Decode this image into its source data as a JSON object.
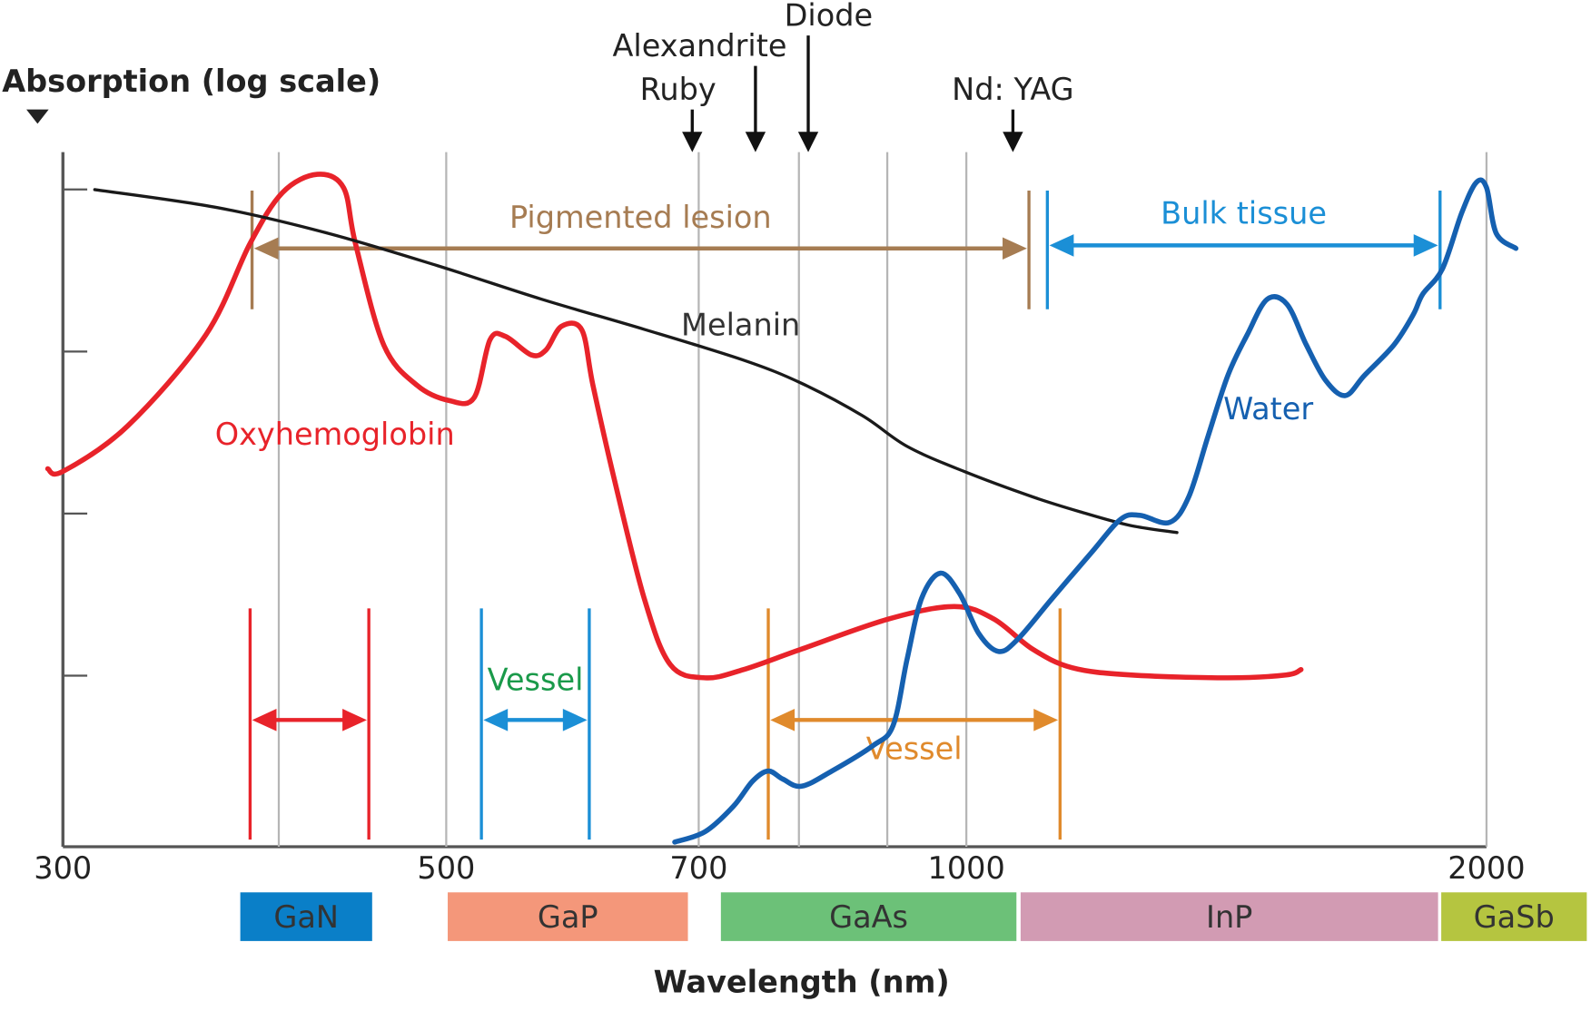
{
  "chart_data": {
    "type": "line",
    "y_label": "Absorption (log scale)",
    "x_label": "Wavelength (nm)",
    "xlim": [
      300,
      2000
    ],
    "xticks": [
      300,
      500,
      700,
      1000,
      2000
    ],
    "x_gridlines": [
      400,
      500,
      700,
      800,
      900,
      1000,
      2000
    ],
    "x_log": true,
    "ylim": [
      0.088,
      1700
    ],
    "yticks": [
      1,
      10,
      100,
      1000
    ],
    "y_log": true,
    "grid": true,
    "series": [
      {
        "name": "Oxyhemoglobin",
        "color": "#e8232a",
        "x": [
          294,
          300,
          327,
          363,
          385,
          402,
          421,
          436,
          443,
          460,
          481,
          502,
          519,
          530,
          541,
          560,
          571,
          583,
          599,
          608,
          625,
          651,
          674,
          706,
          743,
          803,
          902,
          984,
          1037,
          1092,
          1151,
          1244,
          1417,
          1531,
          1562
        ],
        "values": [
          18.9,
          18.2,
          34.7,
          127,
          465,
          957,
          1240,
          1028,
          465,
          110,
          61.8,
          49.8,
          52.0,
          118,
          124,
          95.3,
          102,
          143,
          136,
          61.8,
          16.9,
          2.99,
          1.17,
          0.97,
          1.09,
          1.46,
          2.24,
          2.67,
          2.24,
          1.46,
          1.12,
          1.01,
          0.97,
          1.01,
          1.09
        ]
      },
      {
        "name": "Melanin",
        "color": "#1a1a1a",
        "x": [
          313,
          369,
          427,
          494,
          568,
          651,
          743,
          803,
          871,
          924,
          997,
          1092,
          1166,
          1244,
          1324
        ],
        "values": [
          998,
          771,
          537,
          339,
          210,
          137,
          88.5,
          63.6,
          40.1,
          26.0,
          18.2,
          12.7,
          10.2,
          8.45,
          7.64
        ]
      },
      {
        "name": "Water",
        "color": "#1560b0",
        "x": [
          678,
          706,
          733,
          752,
          768,
          783,
          803,
          836,
          883,
          907,
          924,
          942,
          966,
          991,
          1017,
          1044,
          1071,
          1121,
          1181,
          1228,
          1260,
          1311,
          1345,
          1380,
          1417,
          1454,
          1493,
          1533,
          1573,
          1614,
          1657,
          1700,
          1768,
          1814,
          1837,
          1886,
          1935,
          1973,
          2000,
          2026,
          2080
        ],
        "values": [
          0.094,
          0.109,
          0.156,
          0.223,
          0.258,
          0.23,
          0.208,
          0.258,
          0.37,
          0.493,
          1.26,
          2.99,
          4.29,
          3.21,
          1.81,
          1.41,
          1.68,
          2.99,
          5.72,
          9.21,
          9.76,
          8.82,
          12.7,
          30.0,
          71.3,
          127,
          210,
          196,
          110,
          66.4,
          53.5,
          71.3,
          110,
          169,
          226,
          324,
          716,
          1105,
          1028,
          537,
          433
        ]
      }
    ],
    "lasers": [
      {
        "label": "Ruby",
        "wavelength": 694
      },
      {
        "label": "Alexandrite",
        "wavelength": 755
      },
      {
        "label": "Diode",
        "wavelength": 810
      },
      {
        "label": "Nd: YAG",
        "wavelength": 1064
      }
    ],
    "ranges": [
      {
        "label": "Pigmented lesion",
        "color": "#a67c52",
        "start": 386,
        "end": 1087
      },
      {
        "label": "Bulk tissue",
        "color": "#1b8fd6",
        "start": 1114,
        "end": 1880
      },
      {
        "color": "#e8232a",
        "start": 385,
        "end": 451
      },
      {
        "label": "Vessel",
        "color": "#1b8fd6",
        "label_color": "#1a9a4a",
        "start": 524,
        "end": 605
      },
      {
        "label": "Vessel",
        "color": "#e08a2c",
        "start": 768,
        "end": 1133
      }
    ],
    "materials": [
      {
        "label": "GaN",
        "color": "#0a7fc8",
        "start": 380,
        "end": 453
      },
      {
        "label": "GaP",
        "color": "#f4977a",
        "start": 501,
        "end": 690
      },
      {
        "label": "GaAs",
        "color": "#6cc178",
        "start": 721,
        "end": 1069
      },
      {
        "label": "InP",
        "color": "#d29bb3",
        "start": 1075,
        "end": 1875
      },
      {
        "label": "GaSb",
        "color": "#b5c540",
        "start": 1883,
        "end": 2286
      }
    ]
  }
}
